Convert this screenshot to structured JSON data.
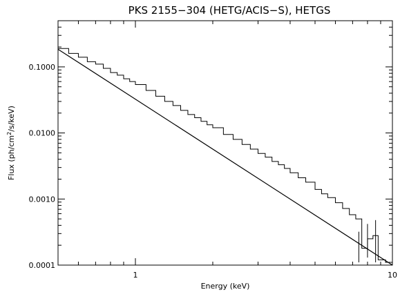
{
  "chart_data": {
    "type": "line",
    "title": "PKS 2155−304 (HETG/ACIS−S), HETGS",
    "xlabel": "Energy (keV)",
    "ylabel_parts": [
      "Flux (ph/cm",
      "2",
      "/s/keV)"
    ],
    "x_scale": "log",
    "y_scale": "log",
    "xlim": [
      0.5,
      10
    ],
    "ylim": [
      0.0001,
      0.5
    ],
    "x_ticks": [
      {
        "value": 1,
        "label": "1"
      },
      {
        "value": 10,
        "label": "10"
      }
    ],
    "y_ticks": [
      {
        "value": 0.1,
        "label": "0.1000"
      },
      {
        "value": 0.01,
        "label": "0.0100"
      },
      {
        "value": 0.001,
        "label": "0.0010"
      },
      {
        "value": 0.0001,
        "label": "0.0001"
      }
    ],
    "grid": false,
    "legend": "none",
    "model": {
      "description_free": true,
      "points": [
        [
          0.5,
          0.185
        ],
        [
          10,
          0.0001
        ]
      ]
    },
    "data_series": {
      "points": [
        [
          0.5,
          0.19
        ],
        [
          0.55,
          0.16
        ],
        [
          0.6,
          0.14
        ],
        [
          0.65,
          0.12
        ],
        [
          0.7,
          0.11
        ],
        [
          0.75,
          0.095
        ],
        [
          0.8,
          0.082
        ],
        [
          0.85,
          0.075
        ],
        [
          0.9,
          0.066
        ],
        [
          0.95,
          0.06
        ],
        [
          1.0,
          0.054
        ],
        [
          1.1,
          0.044
        ],
        [
          1.2,
          0.036
        ],
        [
          1.3,
          0.03
        ],
        [
          1.4,
          0.026
        ],
        [
          1.5,
          0.022
        ],
        [
          1.6,
          0.019
        ],
        [
          1.7,
          0.017
        ],
        [
          1.8,
          0.015
        ],
        [
          1.9,
          0.0133
        ],
        [
          2.0,
          0.012
        ],
        [
          2.2,
          0.0095
        ],
        [
          2.4,
          0.008
        ],
        [
          2.6,
          0.0067
        ],
        [
          2.8,
          0.0057
        ],
        [
          3.0,
          0.0049
        ],
        [
          3.2,
          0.0043
        ],
        [
          3.4,
          0.0037
        ],
        [
          3.6,
          0.0033
        ],
        [
          3.8,
          0.0029
        ],
        [
          4.0,
          0.0025
        ],
        [
          4.3,
          0.0021
        ],
        [
          4.6,
          0.0018
        ],
        [
          5.0,
          0.0014
        ],
        [
          5.3,
          0.0012
        ],
        [
          5.6,
          0.00105
        ],
        [
          6.0,
          0.00088
        ],
        [
          6.4,
          0.00072
        ],
        [
          6.8,
          0.00058
        ],
        [
          7.2,
          0.0005
        ],
        [
          7.6,
          0.00018
        ],
        [
          8.0,
          0.00025
        ],
        [
          8.4,
          0.00028
        ],
        [
          8.8,
          0.00012
        ],
        [
          9.4,
          0.00011
        ]
      ],
      "error_bars": [
        {
          "x": 7.4,
          "low": 0.00011,
          "high": 0.00032
        },
        {
          "x": 8.0,
          "low": 0.00013,
          "high": 0.00042
        },
        {
          "x": 8.6,
          "low": 0.00011,
          "high": 0.00048
        }
      ]
    }
  }
}
